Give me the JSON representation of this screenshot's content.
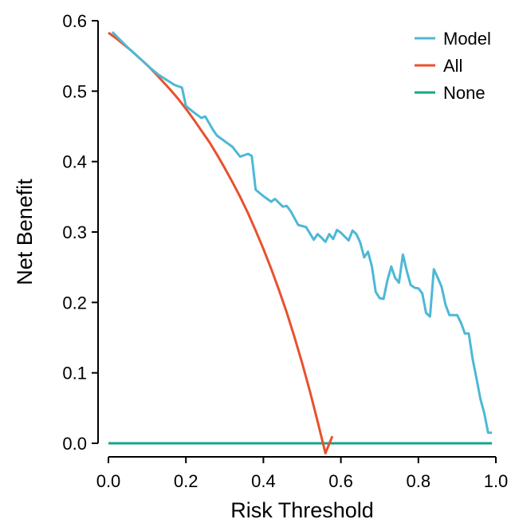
{
  "chart_data": {
    "type": "line",
    "title": "",
    "xlabel": "Risk Threshold",
    "ylabel": "Net Benefit",
    "xlim": [
      0.0,
      1.0
    ],
    "ylim": [
      0.0,
      0.6
    ],
    "x_ticks": [
      0.0,
      0.2,
      0.4,
      0.6,
      0.8,
      1.0
    ],
    "x_tick_labels": [
      "0.0",
      "0.2",
      "0.4",
      "0.6",
      "0.8",
      "1.0"
    ],
    "y_ticks": [
      0.0,
      0.1,
      0.2,
      0.3,
      0.4,
      0.5,
      0.6
    ],
    "y_tick_labels": [
      "0.0",
      "0.1",
      "0.2",
      "0.3",
      "0.4",
      "0.5",
      "0.6"
    ],
    "grid": false,
    "legend_position": "top-right",
    "series": [
      {
        "name": "Model",
        "color": "#4DB8D6",
        "x": [
          0.01,
          0.03,
          0.05,
          0.07,
          0.09,
          0.11,
          0.13,
          0.15,
          0.17,
          0.19,
          0.2,
          0.22,
          0.24,
          0.25,
          0.27,
          0.28,
          0.3,
          0.32,
          0.34,
          0.36,
          0.37,
          0.38,
          0.4,
          0.42,
          0.43,
          0.45,
          0.46,
          0.47,
          0.49,
          0.51,
          0.53,
          0.54,
          0.55,
          0.56,
          0.57,
          0.58,
          0.59,
          0.6,
          0.62,
          0.63,
          0.64,
          0.65,
          0.66,
          0.67,
          0.68,
          0.69,
          0.7,
          0.71,
          0.72,
          0.73,
          0.74,
          0.75,
          0.76,
          0.77,
          0.78,
          0.79,
          0.8,
          0.81,
          0.82,
          0.83,
          0.84,
          0.85,
          0.86,
          0.87,
          0.88,
          0.89,
          0.9,
          0.91,
          0.92,
          0.93,
          0.94,
          0.95,
          0.96,
          0.97,
          0.98,
          0.99
        ],
        "values": [
          0.584,
          0.573,
          0.562,
          0.552,
          0.542,
          0.532,
          0.523,
          0.516,
          0.509,
          0.505,
          0.479,
          0.47,
          0.462,
          0.464,
          0.445,
          0.437,
          0.429,
          0.421,
          0.407,
          0.411,
          0.408,
          0.36,
          0.351,
          0.343,
          0.347,
          0.336,
          0.337,
          0.33,
          0.31,
          0.307,
          0.289,
          0.297,
          0.292,
          0.286,
          0.297,
          0.29,
          0.303,
          0.299,
          0.288,
          0.302,
          0.297,
          0.285,
          0.264,
          0.272,
          0.251,
          0.215,
          0.206,
          0.205,
          0.231,
          0.251,
          0.235,
          0.228,
          0.268,
          0.245,
          0.225,
          0.221,
          0.22,
          0.213,
          0.185,
          0.18,
          0.247,
          0.235,
          0.222,
          0.197,
          0.182,
          0.182,
          0.182,
          0.171,
          0.156,
          0.156,
          0.12,
          0.092,
          0.063,
          0.043,
          0.015,
          0.015
        ]
      },
      {
        "name": "All",
        "color": "#E8512E",
        "x": [
          0.0,
          0.02,
          0.04,
          0.06,
          0.08,
          0.1,
          0.12,
          0.14,
          0.16,
          0.18,
          0.2,
          0.22,
          0.24,
          0.26,
          0.28,
          0.3,
          0.32,
          0.34,
          0.36,
          0.38,
          0.4,
          0.42,
          0.44,
          0.46,
          0.48,
          0.5,
          0.52,
          0.54,
          0.56,
          0.578
        ],
        "values": [
          0.583,
          0.575,
          0.566,
          0.557,
          0.547,
          0.537,
          0.526,
          0.514,
          0.502,
          0.489,
          0.475,
          0.46,
          0.444,
          0.428,
          0.41,
          0.391,
          0.371,
          0.35,
          0.327,
          0.302,
          0.276,
          0.248,
          0.218,
          0.186,
          0.151,
          0.114,
          0.074,
          0.031,
          -0.014,
          0.01
        ]
      },
      {
        "name": "None",
        "color": "#17A589",
        "x": [
          0.0,
          0.99
        ],
        "values": [
          0.0,
          0.0
        ]
      }
    ]
  }
}
